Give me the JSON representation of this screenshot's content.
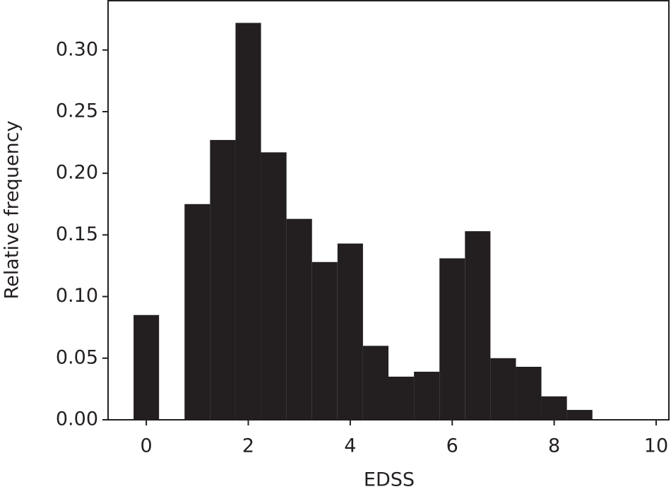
{
  "chart_data": {
    "type": "histogram",
    "xlabel": "EDSS",
    "ylabel": "Relative frequency",
    "bins": [
      -0.25,
      0.25,
      0.75,
      1.25,
      1.75,
      2.25,
      2.75,
      3.25,
      3.75,
      4.25,
      4.75,
      5.25,
      5.75,
      6.25,
      6.75,
      7.25,
      7.75,
      8.25,
      8.75
    ],
    "values": [
      0.085,
      0,
      0.175,
      0.227,
      0.322,
      0.217,
      0.163,
      0.128,
      0.143,
      0.06,
      0.035,
      0.039,
      0.131,
      0.153,
      0.05,
      0.043,
      0.019,
      0.008
    ],
    "color": "#231f20",
    "xlim": [
      -0.75,
      10.25
    ],
    "xticks": [
      0,
      2,
      4,
      6,
      8,
      10
    ],
    "ylim": [
      0,
      0.34
    ],
    "yticks": [
      {
        "value": 0,
        "label": "0.00"
      },
      {
        "value": 0.05,
        "label": "0.05"
      },
      {
        "value": 0.1,
        "label": "0.10"
      },
      {
        "value": 0.15,
        "label": "0.15"
      },
      {
        "value": 0.2,
        "label": "0.20"
      },
      {
        "value": 0.25,
        "label": "0.25"
      },
      {
        "value": 0.3,
        "label": "0.30"
      }
    ]
  }
}
